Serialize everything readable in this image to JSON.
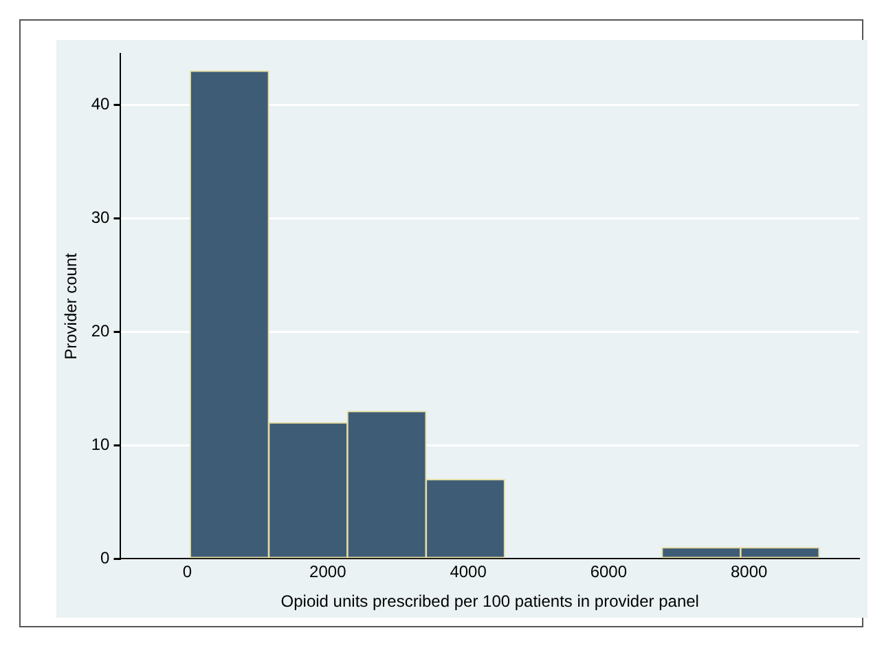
{
  "chart_data": {
    "type": "histogram",
    "xlabel": "Opioid units prescribed per 100 patients in provider panel",
    "ylabel": "Provider count",
    "bins": [
      40,
      1160,
      2280,
      3400,
      4520,
      5640,
      6760,
      7880,
      9000
    ],
    "values": [
      43,
      12,
      13,
      7,
      0,
      0,
      1,
      1
    ],
    "color": "#3e5c76",
    "xlim": [
      -950,
      9570
    ],
    "xticks": [
      0,
      2000,
      4000,
      6000,
      8000
    ],
    "ylim": [
      0,
      44.5
    ],
    "yticks": [
      0,
      10,
      20,
      30,
      40
    ],
    "grid": "y"
  }
}
